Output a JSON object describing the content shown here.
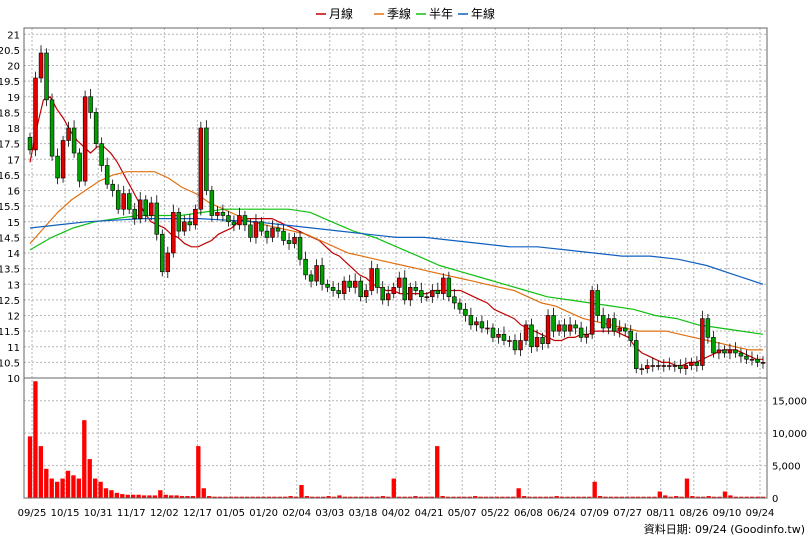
{
  "chart_data": {
    "type": "candlestick-with-volume",
    "legend": [
      {
        "name": "月線",
        "color": "#c00000"
      },
      {
        "name": "季線",
        "color": "#e07010"
      },
      {
        "name": "半年",
        "color": "#10c010"
      },
      {
        "name": "年線",
        "color": "#1060c0"
      }
    ],
    "colors": {
      "up": "#e00000",
      "down": "#00a000",
      "volume": "#ff0000"
    },
    "price_axis": {
      "ylim": [
        10,
        21.2
      ],
      "ticks": [
        "10",
        "10.5",
        "11",
        "11.5",
        "12",
        "12.5",
        "13",
        "13.5",
        "14",
        "14.5",
        "15",
        "15.5",
        "16",
        "16.5",
        "17",
        "17.5",
        "18",
        "18.5",
        "19",
        "19.5",
        "20",
        "20.5",
        "21"
      ]
    },
    "volume_axis": {
      "ylim": [
        0,
        18500
      ],
      "ticks": [
        "0",
        "5,000",
        "10,000",
        "15,000"
      ]
    },
    "x_labels": [
      "09/25",
      "10/15",
      "10/31",
      "11/17",
      "12/02",
      "12/17",
      "01/05",
      "01/20",
      "02/04",
      "03/03",
      "03/18",
      "04/02",
      "04/21",
      "05/07",
      "05/22",
      "06/08",
      "06/24",
      "07/09",
      "07/27",
      "08/11",
      "08/26",
      "09/10",
      "09/24"
    ],
    "closes": [
      17.3,
      19.6,
      20.4,
      18.9,
      17.1,
      16.4,
      17.6,
      18.0,
      17.2,
      16.3,
      19.0,
      18.5,
      17.5,
      16.8,
      16.2,
      16.0,
      15.4,
      15.9,
      15.4,
      15.1,
      15.7,
      15.2,
      15.6,
      14.6,
      13.4,
      14.0,
      15.3,
      14.7,
      15.0,
      14.9,
      15.4,
      18.0,
      16.0,
      15.2,
      15.3,
      15.2,
      15.0,
      14.9,
      15.2,
      14.9,
      14.5,
      15.0,
      14.7,
      14.5,
      14.8,
      14.7,
      14.4,
      14.3,
      14.5,
      13.8,
      13.3,
      13.1,
      13.6,
      13.0,
      12.9,
      12.8,
      12.7,
      13.1,
      12.9,
      13.1,
      12.6,
      12.8,
      13.5,
      12.9,
      12.5,
      12.7,
      12.9,
      13.2,
      12.5,
      12.9,
      12.8,
      12.6,
      12.6,
      12.8,
      12.7,
      13.2,
      12.6,
      12.4,
      12.2,
      12.0,
      11.7,
      11.8,
      11.6,
      11.6,
      11.3,
      11.4,
      11.2,
      11.2,
      10.9,
      11.2,
      11.7,
      11.0,
      11.3,
      11.1,
      12.0,
      11.5,
      11.7,
      11.5,
      11.7,
      11.6,
      11.3,
      11.4,
      12.8,
      12.0,
      11.6,
      11.9,
      11.5,
      11.6,
      11.5,
      11.2,
      10.3,
      10.3,
      10.4,
      10.4,
      10.4,
      10.4,
      10.4,
      10.4,
      10.3,
      10.4,
      10.5,
      10.4,
      11.9,
      11.3,
      10.8,
      10.9,
      10.8,
      10.9,
      10.8,
      10.7,
      10.6,
      10.6,
      10.5,
      10.5
    ],
    "volumes": [
      9500,
      18000,
      8000,
      4500,
      3000,
      2500,
      3000,
      4200,
      3500,
      3000,
      12000,
      6000,
      3000,
      2500,
      1500,
      1200,
      800,
      600,
      500,
      500,
      500,
      400,
      400,
      400,
      1200,
      500,
      400,
      400,
      300,
      300,
      300,
      8000,
      1500,
      300,
      200,
      200,
      200,
      200,
      200,
      200,
      200,
      200,
      200,
      200,
      200,
      200,
      200,
      200,
      300,
      200,
      2000,
      300,
      200,
      200,
      200,
      300,
      200,
      400,
      200,
      200,
      200,
      200,
      200,
      200,
      200,
      300,
      200,
      3000,
      200,
      200,
      200,
      300,
      200,
      200,
      200,
      8000,
      300,
      200,
      200,
      200,
      200,
      200,
      300,
      200,
      200,
      200,
      200,
      200,
      200,
      200,
      1500,
      300,
      200,
      200,
      200,
      200,
      200,
      300,
      200,
      200,
      200,
      200,
      200,
      200,
      2500,
      300,
      200,
      200,
      200,
      200,
      200,
      200,
      200,
      200,
      200,
      200,
      1000,
      400,
      200,
      300,
      200,
      3000,
      300,
      200,
      200,
      300,
      200,
      200,
      1000,
      400,
      200,
      200,
      200,
      200,
      200,
      200
    ],
    "ma_month": [
      16.9,
      18.0,
      18.9,
      19.0,
      18.6,
      18.3,
      17.9,
      17.6,
      17.4,
      17.2,
      17.4,
      17.4,
      17.2,
      16.9,
      16.5,
      16.1,
      15.7,
      15.3,
      15.0,
      14.9,
      14.8,
      14.6,
      14.5,
      14.3,
      14.2,
      14.2,
      14.3,
      14.4,
      14.6,
      14.7,
      14.8,
      15.0,
      15.1,
      15.1,
      15.1,
      15.1,
      15.1,
      15.0,
      14.9,
      14.8,
      14.7,
      14.6,
      14.5,
      14.4,
      14.2,
      14.0,
      13.9,
      13.7,
      13.5,
      13.3,
      13.2,
      13.0,
      12.9,
      12.8,
      12.8,
      12.7,
      12.7,
      12.7,
      12.7,
      12.7,
      12.8,
      12.8,
      12.8,
      12.8,
      12.8,
      12.7,
      12.6,
      12.5,
      12.4,
      12.2,
      12.1,
      12.0,
      11.9,
      11.7,
      11.6,
      11.5,
      11.4,
      11.3,
      11.2,
      11.2,
      11.3,
      11.3,
      11.4,
      11.4,
      11.5,
      11.5,
      11.5,
      11.5,
      11.4,
      11.3,
      11.0,
      10.8,
      10.7,
      10.6,
      10.5,
      10.5,
      10.4,
      10.4,
      10.5,
      10.5,
      10.6,
      10.7,
      10.8,
      10.9,
      10.9,
      10.9,
      10.8,
      10.7,
      10.6,
      10.6
    ],
    "ma_quarter": [
      14.3,
      14.8,
      15.3,
      15.7,
      16.0,
      16.3,
      16.5,
      16.6,
      16.6,
      16.6,
      16.4,
      16.1,
      15.9,
      15.6,
      15.4,
      15.2,
      15.0,
      14.9,
      14.8,
      14.7,
      14.6,
      14.4,
      14.2,
      14.0,
      13.9,
      13.8,
      13.7,
      13.6,
      13.5,
      13.4,
      13.3,
      13.2,
      13.1,
      13.0,
      12.9,
      12.8,
      12.6,
      12.4,
      12.3,
      12.1,
      11.9,
      11.8,
      11.7,
      11.6,
      11.5,
      11.5,
      11.5,
      11.4,
      11.3,
      11.2,
      11.1,
      11.0,
      10.9,
      10.9
    ],
    "ma_half": [
      14.1,
      14.5,
      14.8,
      15.0,
      15.1,
      15.2,
      15.2,
      15.2,
      15.3,
      15.4,
      15.4,
      15.4,
      15.4,
      15.3,
      15.0,
      14.7,
      14.5,
      14.2,
      13.9,
      13.6,
      13.4,
      13.2,
      13.0,
      12.8,
      12.6,
      12.5,
      12.4,
      12.3,
      12.2,
      12.0,
      11.9,
      11.7,
      11.6,
      11.5,
      11.4
    ],
    "ma_year": [
      14.8,
      14.9,
      15.0,
      15.05,
      15.1,
      15.1,
      15.1,
      15.05,
      15.0,
      14.9,
      14.8,
      14.7,
      14.6,
      14.5,
      14.5,
      14.4,
      14.3,
      14.2,
      14.2,
      14.1,
      14.0,
      13.9,
      13.9,
      13.8,
      13.6,
      13.3,
      13.0
    ],
    "source": "資料日期: 09/24 (Goodinfo.tw)"
  }
}
